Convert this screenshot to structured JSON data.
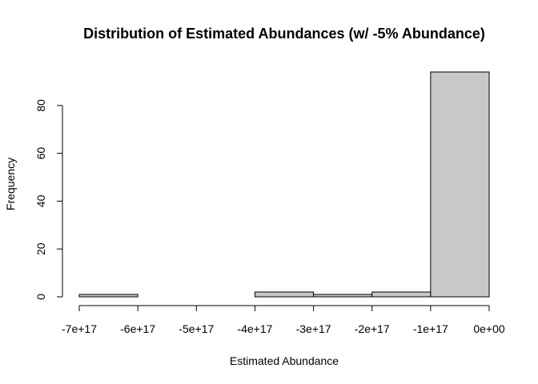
{
  "chart_data": {
    "type": "bar",
    "title": "Distribution of Estimated Abundances (w/ -5% Abundance)",
    "xlabel": "Estimated Abundance",
    "ylabel": "Frequency",
    "bin_edges": [
      -7e+17,
      -6e+17,
      -5e+17,
      -4e+17,
      -3e+17,
      -2e+17,
      -1e+17,
      0
    ],
    "values": [
      1,
      0,
      0,
      2,
      1,
      2,
      94
    ],
    "xlim": [
      -7e+17,
      0
    ],
    "ylim": [
      0,
      94
    ],
    "x_ticks": [
      -7e+17,
      -6e+17,
      -5e+17,
      -4e+17,
      -3e+17,
      -2e+17,
      -1e+17,
      0
    ],
    "x_tick_labels": [
      "-7e+17",
      "-6e+17",
      "-5e+17",
      "-4e+17",
      "-3e+17",
      "-2e+17",
      "-1e+17",
      "0e+00"
    ],
    "y_ticks": [
      0,
      20,
      40,
      60,
      80
    ],
    "y_tick_labels": [
      "0",
      "20",
      "40",
      "60",
      "80"
    ],
    "grid": false,
    "bar_color": "#c8c8c8"
  }
}
